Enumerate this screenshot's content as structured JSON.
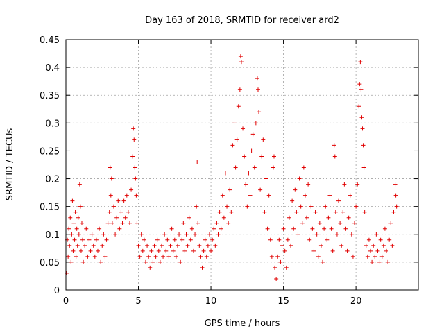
{
  "chart_data": {
    "type": "scatter",
    "title": "Day 163 of 2018, SRMTID for receiver ard2",
    "xlabel": "GPS time / hours",
    "ylabel": "SRMTID / TECUs",
    "xlim": [
      0,
      24.3
    ],
    "ylim": [
      0,
      0.45
    ],
    "grid": true,
    "marker": "+",
    "color": "#e00000",
    "xticks": [
      {
        "value": 0,
        "label": "0"
      },
      {
        "value": 5,
        "label": "5"
      },
      {
        "value": 10,
        "label": "10"
      },
      {
        "value": 15,
        "label": "15"
      },
      {
        "value": 20,
        "label": "20"
      }
    ],
    "yticks": [
      {
        "value": 0,
        "label": "0"
      },
      {
        "value": 0.05,
        "label": "0.05"
      },
      {
        "value": 0.1,
        "label": "0.1"
      },
      {
        "value": 0.15,
        "label": "0.15"
      },
      {
        "value": 0.2,
        "label": "0.2"
      },
      {
        "value": 0.25,
        "label": "0.25"
      },
      {
        "value": 0.3,
        "label": "0.3"
      },
      {
        "value": 0.35,
        "label": "0.35"
      },
      {
        "value": 0.4,
        "label": "0.4"
      },
      {
        "value": 0.45,
        "label": "0.45"
      }
    ],
    "series": [
      {
        "name": "ard2",
        "points": [
          [
            0.05,
            0.03
          ],
          [
            0.1,
            0.09
          ],
          [
            0.15,
            0.06
          ],
          [
            0.2,
            0.11
          ],
          [
            0.25,
            0.08
          ],
          [
            0.3,
            0.13
          ],
          [
            0.35,
            0.05
          ],
          [
            0.4,
            0.1
          ],
          [
            0.45,
            0.16
          ],
          [
            0.5,
            0.07
          ],
          [
            0.55,
            0.12
          ],
          [
            0.6,
            0.09
          ],
          [
            0.65,
            0.14
          ],
          [
            0.7,
            0.06
          ],
          [
            0.75,
            0.11
          ],
          [
            0.8,
            0.08
          ],
          [
            0.85,
            0.13
          ],
          [
            0.9,
            0.1
          ],
          [
            0.95,
            0.19
          ],
          [
            1.0,
            0.15
          ],
          [
            1.05,
            0.07
          ],
          [
            1.1,
            0.12
          ],
          [
            1.15,
            0.09
          ],
          [
            1.2,
            0.05
          ],
          [
            1.3,
            0.08
          ],
          [
            1.4,
            0.11
          ],
          [
            1.5,
            0.06
          ],
          [
            1.6,
            0.09
          ],
          [
            1.7,
            0.07
          ],
          [
            1.8,
            0.1
          ],
          [
            1.9,
            0.08
          ],
          [
            2.0,
            0.06
          ],
          [
            2.1,
            0.09
          ],
          [
            2.2,
            0.07
          ],
          [
            2.3,
            0.11
          ],
          [
            2.4,
            0.05
          ],
          [
            2.5,
            0.08
          ],
          [
            2.6,
            0.1
          ],
          [
            2.7,
            0.06
          ],
          [
            2.8,
            0.09
          ],
          [
            2.9,
            0.12
          ],
          [
            3.0,
            0.14
          ],
          [
            3.05,
            0.22
          ],
          [
            3.1,
            0.17
          ],
          [
            3.15,
            0.2
          ],
          [
            3.2,
            0.12
          ],
          [
            3.3,
            0.15
          ],
          [
            3.4,
            0.1
          ],
          [
            3.5,
            0.13
          ],
          [
            3.6,
            0.16
          ],
          [
            3.7,
            0.11
          ],
          [
            3.8,
            0.14
          ],
          [
            3.9,
            0.12
          ],
          [
            4.0,
            0.16
          ],
          [
            4.1,
            0.13
          ],
          [
            4.2,
            0.17
          ],
          [
            4.3,
            0.14
          ],
          [
            4.4,
            0.12
          ],
          [
            4.5,
            0.18
          ],
          [
            4.6,
            0.24
          ],
          [
            4.65,
            0.29
          ],
          [
            4.7,
            0.27
          ],
          [
            4.75,
            0.22
          ],
          [
            4.8,
            0.2
          ],
          [
            4.85,
            0.17
          ],
          [
            4.9,
            0.12
          ],
          [
            5.0,
            0.08
          ],
          [
            5.1,
            0.06
          ],
          [
            5.2,
            0.1
          ],
          [
            5.3,
            0.07
          ],
          [
            5.4,
            0.09
          ],
          [
            5.5,
            0.05
          ],
          [
            5.6,
            0.08
          ],
          [
            5.7,
            0.06
          ],
          [
            5.8,
            0.04
          ],
          [
            5.9,
            0.07
          ],
          [
            6.0,
            0.05
          ],
          [
            6.1,
            0.08
          ],
          [
            6.2,
            0.06
          ],
          [
            6.3,
            0.09
          ],
          [
            6.4,
            0.07
          ],
          [
            6.5,
            0.05
          ],
          [
            6.6,
            0.08
          ],
          [
            6.7,
            0.06
          ],
          [
            6.8,
            0.1
          ],
          [
            6.9,
            0.07
          ],
          [
            7.0,
            0.09
          ],
          [
            7.1,
            0.06
          ],
          [
            7.2,
            0.08
          ],
          [
            7.3,
            0.11
          ],
          [
            7.4,
            0.07
          ],
          [
            7.5,
            0.09
          ],
          [
            7.6,
            0.06
          ],
          [
            7.7,
            0.08
          ],
          [
            7.8,
            0.1
          ],
          [
            7.9,
            0.05
          ],
          [
            8.0,
            0.09
          ],
          [
            8.1,
            0.12
          ],
          [
            8.2,
            0.07
          ],
          [
            8.3,
            0.1
          ],
          [
            8.4,
            0.08
          ],
          [
            8.5,
            0.13
          ],
          [
            8.6,
            0.09
          ],
          [
            8.7,
            0.11
          ],
          [
            8.8,
            0.07
          ],
          [
            8.9,
            0.1
          ],
          [
            9.0,
            0.15
          ],
          [
            9.05,
            0.23
          ],
          [
            9.1,
            0.12
          ],
          [
            9.2,
            0.08
          ],
          [
            9.3,
            0.06
          ],
          [
            9.4,
            0.04
          ],
          [
            9.5,
            0.07
          ],
          [
            9.6,
            0.09
          ],
          [
            9.7,
            0.06
          ],
          [
            9.8,
            0.08
          ],
          [
            9.9,
            0.1
          ],
          [
            10.0,
            0.07
          ],
          [
            10.1,
            0.09
          ],
          [
            10.2,
            0.11
          ],
          [
            10.3,
            0.08
          ],
          [
            10.4,
            0.12
          ],
          [
            10.5,
            0.1
          ],
          [
            10.6,
            0.14
          ],
          [
            10.7,
            0.11
          ],
          [
            10.8,
            0.17
          ],
          [
            10.9,
            0.13
          ],
          [
            11.0,
            0.21
          ],
          [
            11.1,
            0.15
          ],
          [
            11.2,
            0.12
          ],
          [
            11.3,
            0.18
          ],
          [
            11.4,
            0.14
          ],
          [
            11.5,
            0.26
          ],
          [
            11.6,
            0.3
          ],
          [
            11.7,
            0.22
          ],
          [
            11.8,
            0.27
          ],
          [
            11.9,
            0.33
          ],
          [
            12.0,
            0.36
          ],
          [
            12.05,
            0.42
          ],
          [
            12.1,
            0.41
          ],
          [
            12.2,
            0.29
          ],
          [
            12.3,
            0.24
          ],
          [
            12.4,
            0.19
          ],
          [
            12.5,
            0.15
          ],
          [
            12.6,
            0.21
          ],
          [
            12.7,
            0.17
          ],
          [
            12.8,
            0.25
          ],
          [
            12.9,
            0.28
          ],
          [
            13.0,
            0.22
          ],
          [
            13.1,
            0.3
          ],
          [
            13.2,
            0.38
          ],
          [
            13.25,
            0.36
          ],
          [
            13.3,
            0.32
          ],
          [
            13.4,
            0.18
          ],
          [
            13.5,
            0.24
          ],
          [
            13.6,
            0.27
          ],
          [
            13.7,
            0.14
          ],
          [
            13.8,
            0.2
          ],
          [
            13.9,
            0.11
          ],
          [
            14.0,
            0.17
          ],
          [
            14.1,
            0.09
          ],
          [
            14.2,
            0.06
          ],
          [
            14.3,
            0.22
          ],
          [
            14.35,
            0.24
          ],
          [
            14.4,
            0.04
          ],
          [
            14.5,
            0.02
          ],
          [
            14.6,
            0.06
          ],
          [
            14.7,
            0.09
          ],
          [
            14.8,
            0.05
          ],
          [
            14.9,
            0.08
          ],
          [
            15.0,
            0.11
          ],
          [
            15.1,
            0.07
          ],
          [
            15.2,
            0.04
          ],
          [
            15.3,
            0.09
          ],
          [
            15.4,
            0.13
          ],
          [
            15.5,
            0.08
          ],
          [
            15.6,
            0.16
          ],
          [
            15.7,
            0.11
          ],
          [
            15.8,
            0.18
          ],
          [
            15.9,
            0.14
          ],
          [
            16.0,
            0.1
          ],
          [
            16.1,
            0.2
          ],
          [
            16.2,
            0.15
          ],
          [
            16.3,
            0.12
          ],
          [
            16.4,
            0.22
          ],
          [
            16.5,
            0.17
          ],
          [
            16.6,
            0.13
          ],
          [
            16.7,
            0.19
          ],
          [
            16.8,
            0.09
          ],
          [
            16.9,
            0.15
          ],
          [
            17.0,
            0.11
          ],
          [
            17.1,
            0.07
          ],
          [
            17.2,
            0.14
          ],
          [
            17.3,
            0.1
          ],
          [
            17.4,
            0.06
          ],
          [
            17.5,
            0.12
          ],
          [
            17.6,
            0.08
          ],
          [
            17.7,
            0.05
          ],
          [
            17.8,
            0.11
          ],
          [
            17.9,
            0.15
          ],
          [
            18.0,
            0.09
          ],
          [
            18.1,
            0.13
          ],
          [
            18.2,
            0.17
          ],
          [
            18.3,
            0.11
          ],
          [
            18.4,
            0.07
          ],
          [
            18.5,
            0.26
          ],
          [
            18.55,
            0.24
          ],
          [
            18.6,
            0.14
          ],
          [
            18.7,
            0.1
          ],
          [
            18.8,
            0.16
          ],
          [
            18.9,
            0.12
          ],
          [
            19.0,
            0.08
          ],
          [
            19.1,
            0.14
          ],
          [
            19.2,
            0.19
          ],
          [
            19.3,
            0.11
          ],
          [
            19.4,
            0.07
          ],
          [
            19.5,
            0.13
          ],
          [
            19.6,
            0.17
          ],
          [
            19.7,
            0.1
          ],
          [
            19.8,
            0.06
          ],
          [
            19.9,
            0.12
          ],
          [
            20.0,
            0.15
          ],
          [
            20.1,
            0.19
          ],
          [
            20.2,
            0.33
          ],
          [
            20.25,
            0.37
          ],
          [
            20.3,
            0.41
          ],
          [
            20.35,
            0.36
          ],
          [
            20.4,
            0.31
          ],
          [
            20.45,
            0.29
          ],
          [
            20.5,
            0.26
          ],
          [
            20.55,
            0.22
          ],
          [
            20.6,
            0.14
          ],
          [
            20.7,
            0.08
          ],
          [
            20.8,
            0.06
          ],
          [
            20.9,
            0.09
          ],
          [
            21.0,
            0.07
          ],
          [
            21.1,
            0.05
          ],
          [
            21.2,
            0.08
          ],
          [
            21.3,
            0.06
          ],
          [
            21.4,
            0.1
          ],
          [
            21.5,
            0.07
          ],
          [
            21.6,
            0.05
          ],
          [
            21.7,
            0.09
          ],
          [
            21.8,
            0.06
          ],
          [
            21.9,
            0.08
          ],
          [
            22.0,
            0.11
          ],
          [
            22.1,
            0.07
          ],
          [
            22.2,
            0.05
          ],
          [
            22.3,
            0.09
          ],
          [
            22.4,
            0.12
          ],
          [
            22.5,
            0.08
          ],
          [
            22.6,
            0.14
          ],
          [
            22.7,
            0.19
          ],
          [
            22.75,
            0.17
          ],
          [
            22.8,
            0.15
          ]
        ]
      }
    ]
  }
}
